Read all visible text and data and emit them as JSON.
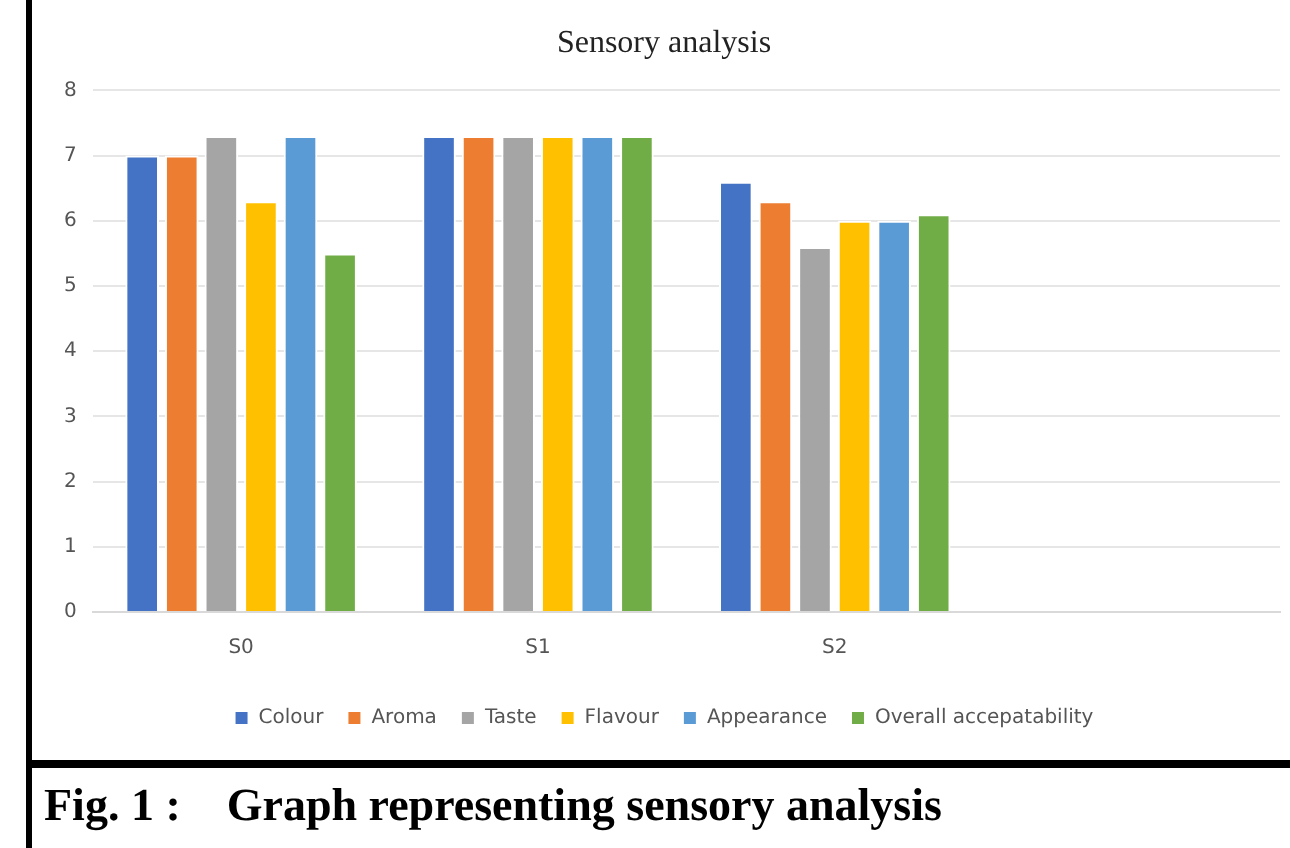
{
  "chart_data": {
    "type": "bar",
    "title": "Sensory analysis",
    "categories": [
      "S0",
      "S1",
      "S2",
      null
    ],
    "series": [
      {
        "name": "Colour",
        "color": "#4472c4",
        "values": [
          7,
          7.3,
          6.6,
          null
        ]
      },
      {
        "name": "Aroma",
        "color": "#ed7d31",
        "values": [
          7,
          7.3,
          6.3,
          null
        ]
      },
      {
        "name": "Taste",
        "color": "#a5a5a5",
        "values": [
          7.3,
          7.3,
          5.6,
          null
        ]
      },
      {
        "name": "Flavour",
        "color": "#ffc000",
        "values": [
          6.3,
          7.3,
          6.0,
          null
        ]
      },
      {
        "name": "Appearance",
        "color": "#5b9bd5",
        "values": [
          7.3,
          7.3,
          6.0,
          null
        ]
      },
      {
        "name": "Overall accepatability",
        "color": "#70ad47",
        "values": [
          5.5,
          7.3,
          6.1,
          null
        ]
      }
    ],
    "ylim": [
      0,
      8
    ],
    "yticks": [
      0,
      1,
      2,
      3,
      4,
      5,
      6,
      7,
      8
    ],
    "grid": "y",
    "legend": "bottom",
    "annotations": [
      "Fig. 1 :    Graph representing sensory analysis"
    ]
  }
}
